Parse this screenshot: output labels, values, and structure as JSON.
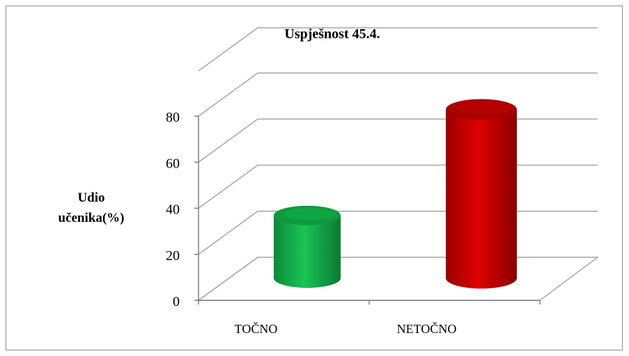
{
  "chart_data": {
    "type": "bar",
    "style": "3d-cylinder",
    "title": "Uspješnost 45.4.",
    "ylabel_line1": "Udio",
    "ylabel_line2": "učenika(%)",
    "xlabel": "",
    "ylim": [
      0,
      80
    ],
    "yticks": [
      0,
      20,
      40,
      60,
      80
    ],
    "categories": [
      "TOČNO",
      "NETOČNO"
    ],
    "values": [
      26,
      72
    ],
    "colors": [
      "#12b24a",
      "#c00000"
    ],
    "grid": true,
    "legend": "none"
  }
}
